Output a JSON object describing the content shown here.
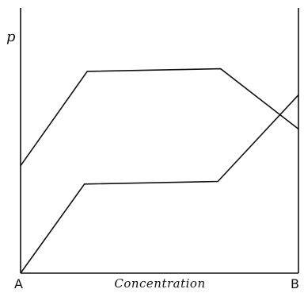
{
  "figure": {
    "y_label": "p",
    "x_label": "Concentration",
    "left_label": "A",
    "right_label": "B",
    "ink_color": "#111111"
  },
  "curves": [
    {
      "name": "upper-curve",
      "points": [
        [
          0.0,
          0.41
        ],
        [
          0.24,
          0.77
        ],
        [
          0.72,
          0.78
        ],
        [
          1.0,
          0.55
        ]
      ]
    },
    {
      "name": "lower-curve",
      "points": [
        [
          0.0,
          0.0
        ],
        [
          0.23,
          0.34
        ],
        [
          0.71,
          0.35
        ],
        [
          1.0,
          0.68
        ]
      ]
    }
  ]
}
